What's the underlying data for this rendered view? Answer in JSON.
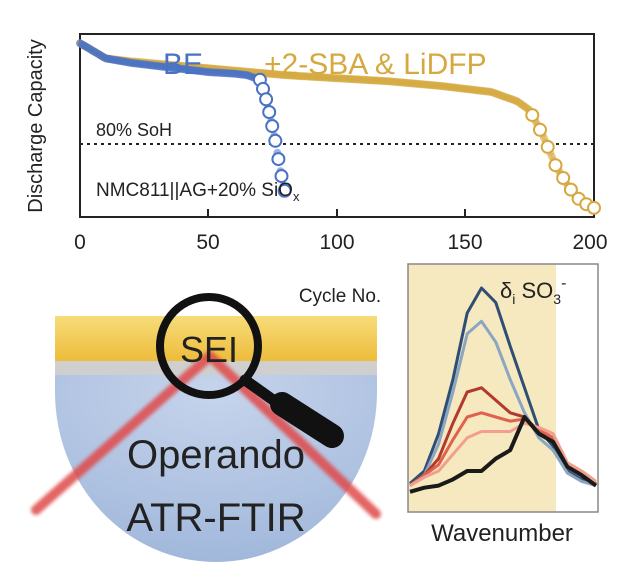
{
  "top_chart": {
    "ylabel": "Discharge Capacity",
    "xlabel": "Cycle No.",
    "xticks": [
      "0",
      "50",
      "100",
      "150",
      "200"
    ],
    "soh_label": "80% SoH",
    "cell_label_main": "NMC811||AG+20% SiO",
    "cell_label_sub": "x",
    "legend": [
      {
        "label": "BE",
        "color": "#4a72c4"
      },
      {
        "label": "+2-SBA & LiDFP",
        "color": "#d6a940"
      }
    ]
  },
  "chart_data": [
    {
      "type": "scatter",
      "title": "",
      "xlabel": "Cycle No.",
      "ylabel": "Discharge Capacity",
      "xlim": [
        0,
        200
      ],
      "series": [
        {
          "name": "BE",
          "color": "#4a72c4",
          "x": [
            0,
            10,
            20,
            30,
            40,
            50,
            60,
            65,
            70,
            72,
            74,
            76,
            78,
            80
          ],
          "y": [
            1.02,
            0.97,
            0.955,
            0.945,
            0.935,
            0.925,
            0.92,
            0.915,
            0.9,
            0.85,
            0.78,
            0.7,
            0.6,
            0.52
          ]
        },
        {
          "name": "+2-SBA & LiDFP",
          "color": "#d6a940",
          "x": [
            0,
            10,
            20,
            40,
            60,
            80,
            100,
            120,
            140,
            160,
            170,
            175,
            180,
            185,
            190,
            195,
            200
          ],
          "y": [
            1.02,
            0.97,
            0.96,
            0.945,
            0.93,
            0.915,
            0.905,
            0.895,
            0.88,
            0.86,
            0.83,
            0.8,
            0.72,
            0.62,
            0.55,
            0.5,
            0.48
          ]
        }
      ],
      "reference_line": {
        "label": "80% SoH",
        "y": 0.8,
        "style": "dotted"
      },
      "grid": false
    },
    {
      "type": "line",
      "xlabel": "Wavenumber",
      "title": "δi SO3-",
      "series": [
        {
          "color": "#2e4f73",
          "values": [
            0.06,
            0.12,
            0.3,
            0.56,
            0.88,
            1.0,
            0.93,
            0.72,
            0.52,
            0.32,
            0.24,
            0.12,
            0.08,
            0.06
          ]
        },
        {
          "color": "#8aa6c2",
          "values": [
            0.05,
            0.1,
            0.25,
            0.5,
            0.78,
            0.84,
            0.74,
            0.56,
            0.4,
            0.28,
            0.22,
            0.11,
            0.07,
            0.05
          ]
        },
        {
          "color": "#b03a2e",
          "values": [
            0.05,
            0.1,
            0.18,
            0.35,
            0.5,
            0.52,
            0.46,
            0.4,
            0.38,
            0.3,
            0.26,
            0.14,
            0.1,
            0.06
          ]
        },
        {
          "color": "#e0624e",
          "values": [
            0.05,
            0.1,
            0.15,
            0.27,
            0.38,
            0.4,
            0.38,
            0.36,
            0.37,
            0.32,
            0.28,
            0.15,
            0.11,
            0.06
          ]
        },
        {
          "color": "#f0a08e",
          "values": [
            0.05,
            0.09,
            0.12,
            0.2,
            0.28,
            0.31,
            0.31,
            0.31,
            0.35,
            0.33,
            0.3,
            0.16,
            0.12,
            0.07
          ]
        },
        {
          "color": "#1a1a1a",
          "values": [
            0.02,
            0.04,
            0.05,
            0.08,
            0.12,
            0.12,
            0.18,
            0.22,
            0.38,
            0.3,
            0.26,
            0.14,
            0.1,
            0.05
          ]
        }
      ]
    }
  ],
  "spectrum": {
    "label_delta": "δ",
    "label_sub": "i",
    "label_main": " SO",
    "label_sub3": "3",
    "label_sup": "-",
    "xlabel": "Wavenumber"
  },
  "atr_diagram": {
    "sei_label": "SEI",
    "line1": "Operando",
    "line2": "ATR-FTIR",
    "colors": {
      "sei_band": "#f2c84e",
      "crystal": "#b9c9e4",
      "beam": "#e04040"
    }
  }
}
